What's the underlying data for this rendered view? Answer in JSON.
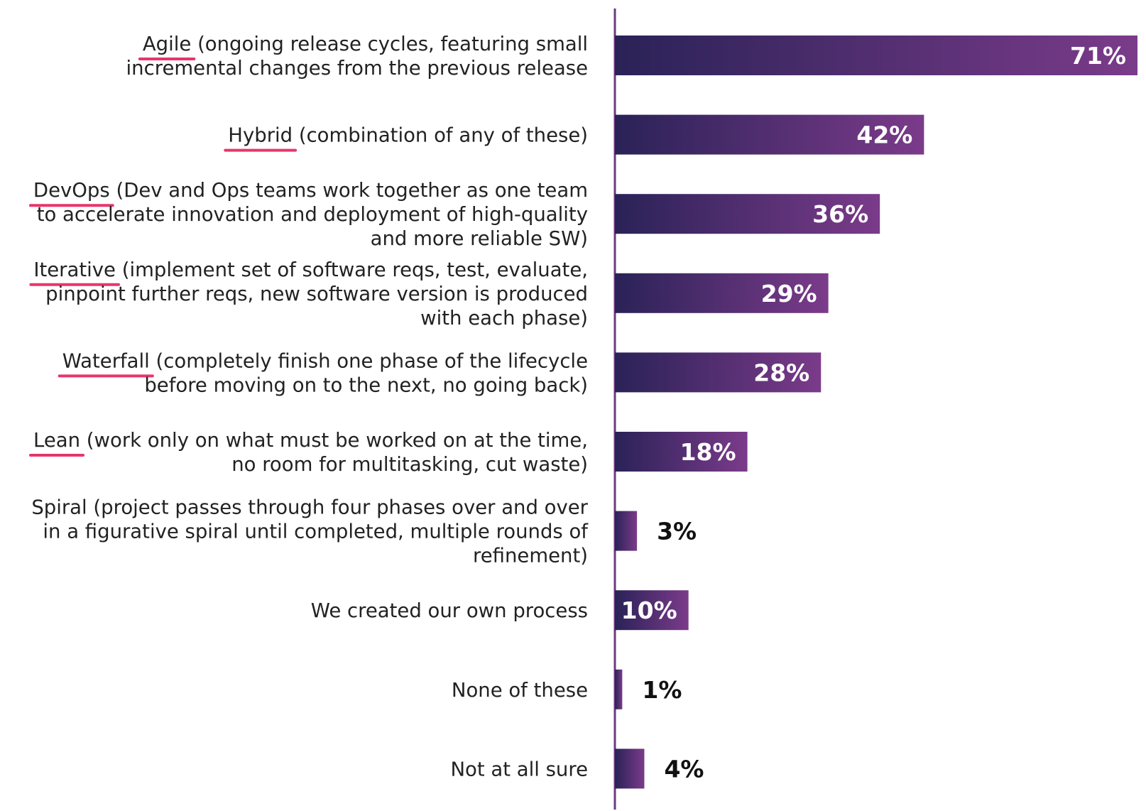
{
  "chart_data": {
    "type": "bar",
    "orientation": "horizontal",
    "title": "",
    "xlabel": "",
    "ylabel": "",
    "xlim": [
      0,
      71
    ],
    "grid": false,
    "unit": "%",
    "categories": [
      {
        "lines": [
          [
            "Agile",
            " (ongoing release cycles, featuring small"
          ],
          [
            "incremental changes from the previous release"
          ]
        ],
        "value": 71,
        "label": "71%",
        "emphasized": true
      },
      {
        "lines": [
          [
            "Hybrid",
            " (combination of any of these)"
          ]
        ],
        "value": 42,
        "label": "42%",
        "emphasized": true
      },
      {
        "lines": [
          [
            "DevOps",
            " (Dev and Ops teams work together as one team"
          ],
          [
            "to accelerate innovation and deployment of high-quality"
          ],
          [
            "and more reliable SW)"
          ]
        ],
        "value": 36,
        "label": "36%",
        "emphasized": true
      },
      {
        "lines": [
          [
            "Iterative",
            " (implement set of software reqs, test, evaluate,"
          ],
          [
            "pinpoint further reqs, new software version is produced"
          ],
          [
            "with each phase)"
          ]
        ],
        "value": 29,
        "label": "29%",
        "emphasized": true
      },
      {
        "lines": [
          [
            "Waterfall",
            " (completely finish one phase of the lifecycle"
          ],
          [
            "before moving on to the next, no going back)"
          ]
        ],
        "value": 28,
        "label": "28%",
        "emphasized": true
      },
      {
        "lines": [
          [
            "Lean",
            " (work only on what must be worked on at the time,"
          ],
          [
            "no room for multitasking, cut waste)"
          ]
        ],
        "value": 18,
        "label": "18%",
        "emphasized": true
      },
      {
        "lines": [
          [
            "Spiral",
            " (project passes through four phases over and over"
          ],
          [
            "in a figurative spiral until completed, multiple rounds of"
          ],
          [
            "refinement)"
          ]
        ],
        "value": 3,
        "label": "3%",
        "emphasized": false
      },
      {
        "lines": [
          [
            "We created our own process"
          ]
        ],
        "value": 10,
        "label": "10%",
        "emphasized": false
      },
      {
        "lines": [
          [
            "None of these"
          ]
        ],
        "value": 1,
        "label": "1%",
        "emphasized": false
      },
      {
        "lines": [
          [
            "Not at all sure"
          ]
        ],
        "value": 4,
        "label": "4%",
        "emphasized": false
      }
    ],
    "colors": {
      "bar_start": "#2a2257",
      "bar_end": "#7b3b8a",
      "axis": "#6a3a80",
      "underline": "#e8356b",
      "value_inside": "#ffffff",
      "value_outside": "#111111",
      "text": "#222222"
    }
  }
}
